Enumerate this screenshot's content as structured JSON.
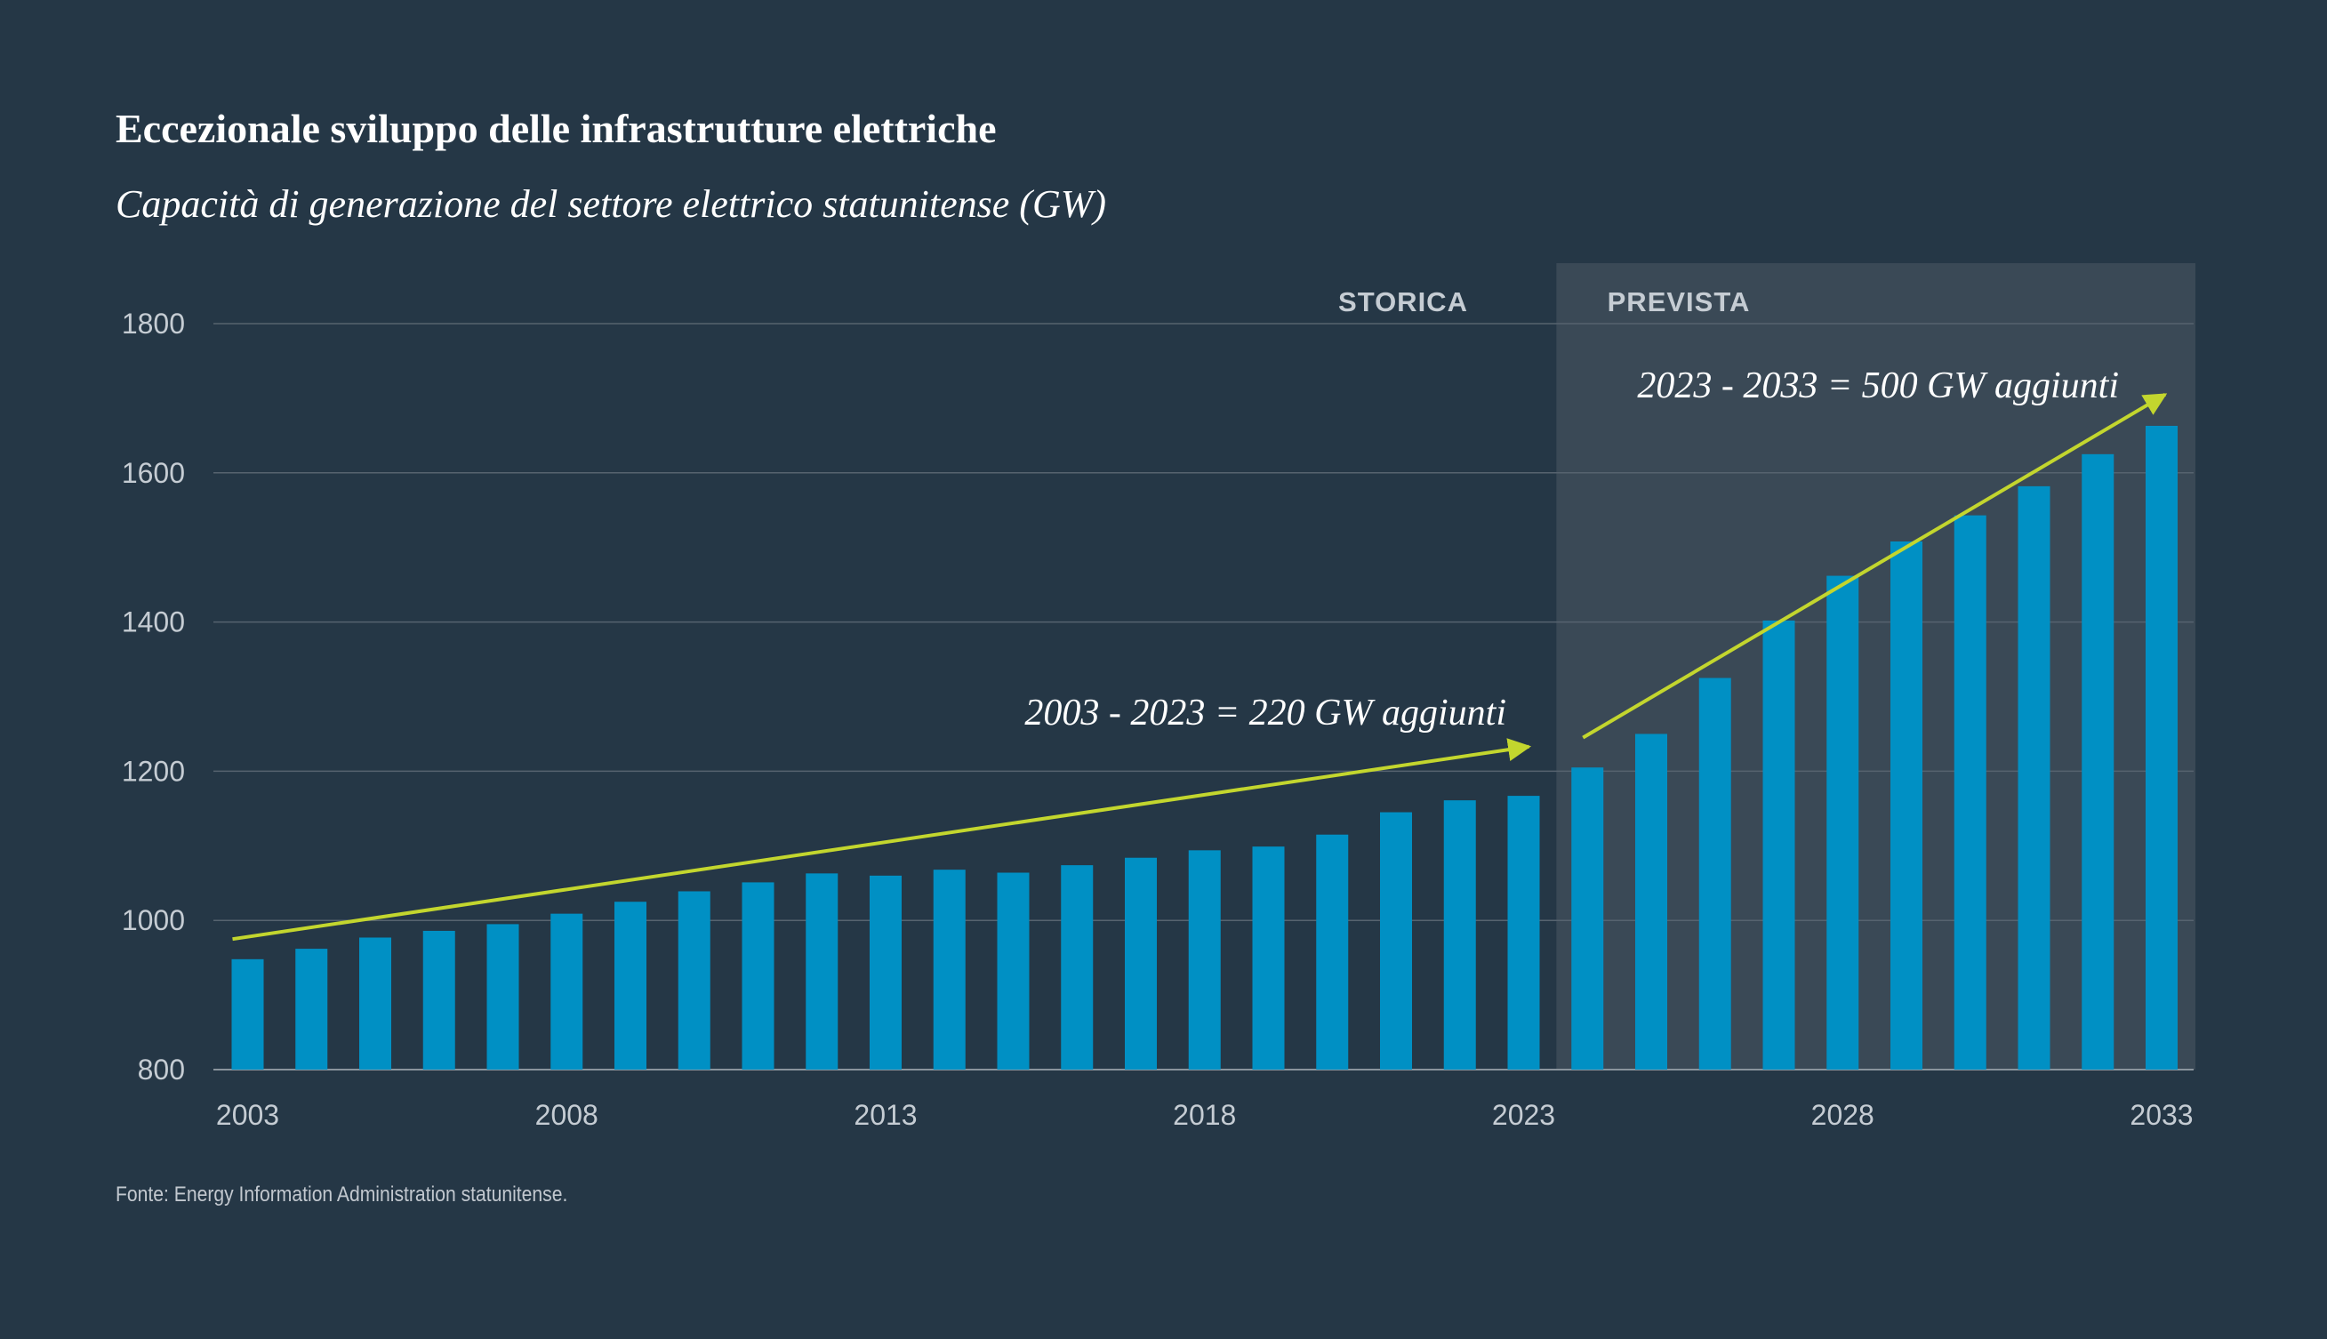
{
  "title": "Eccezionale sviluppo delle infrastrutture elettriche",
  "subtitle": "Capacità di generazione del settore elettrico statunitense (GW)",
  "source": "Fonte: Energy Information Administration statunitense.",
  "colors": {
    "background": "#253746",
    "forecast_band": "#3a4956",
    "bar": "#0090c4",
    "arrow": "#c3d62e",
    "grid": "#56636f"
  },
  "chart_data": {
    "type": "bar",
    "categories": [
      "2003",
      "2004",
      "2005",
      "2006",
      "2007",
      "2008",
      "2009",
      "2010",
      "2011",
      "2012",
      "2013",
      "2014",
      "2015",
      "2016",
      "2017",
      "2018",
      "2019",
      "2020",
      "2021",
      "2022",
      "2023",
      "2024",
      "2025",
      "2026",
      "2027",
      "2028",
      "2029",
      "2030",
      "2031",
      "2032",
      "2033"
    ],
    "values": [
      948,
      962,
      977,
      986,
      995,
      1009,
      1025,
      1039,
      1051,
      1063,
      1060,
      1068,
      1064,
      1074,
      1084,
      1094,
      1099,
      1115,
      1145,
      1161,
      1167,
      1205,
      1250,
      1325,
      1402,
      1462,
      1508,
      1543,
      1582,
      1625,
      1663
    ],
    "ylim": [
      800,
      1800
    ],
    "yticks": [
      800,
      1000,
      1200,
      1400,
      1600,
      1800
    ],
    "xticks": [
      "2003",
      "2008",
      "2013",
      "2018",
      "2023",
      "2028",
      "2033"
    ],
    "periods": {
      "historical_label": "STORICA",
      "forecast_label": "PREVISTA",
      "forecast_start": "2024",
      "forecast_end": "2033"
    },
    "annotations": [
      {
        "text": "2003 - 2023 = 220 GW aggiunti",
        "from": [
          "2003",
          975
        ],
        "to": [
          "2023",
          1233
        ]
      },
      {
        "text": "2023 - 2033 = 500 GW aggiunti",
        "from": [
          "2024",
          1245
        ],
        "to": [
          "2033",
          1705
        ]
      }
    ]
  }
}
